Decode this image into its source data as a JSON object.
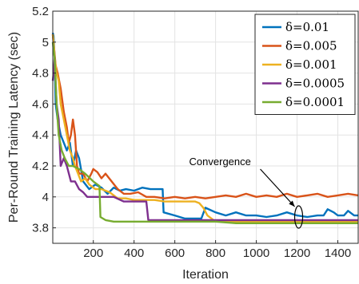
{
  "chart_data": {
    "type": "line",
    "title": "",
    "xlabel": "Iteration",
    "ylabel": "Per-Round Training Latency (sec)",
    "xlim": [
      1,
      1500
    ],
    "ylim": [
      3.7,
      5.2
    ],
    "xticks": [
      200,
      400,
      600,
      800,
      1000,
      1200,
      1400
    ],
    "yticks": [
      3.8,
      4,
      4.2,
      4.4,
      4.6,
      4.8,
      5,
      5.2
    ],
    "xtick_labels": [
      "200",
      "400",
      "600",
      "800",
      "1000",
      "1200",
      "1400"
    ],
    "ytick_labels": [
      "3.8",
      "4",
      "4.2",
      "4.4",
      "4.6",
      "4.8",
      "5",
      "5.2"
    ],
    "grid": true,
    "legend_position": "top-right",
    "series": [
      {
        "name": "δ=0.01",
        "color": "#0072BD",
        "x": [
          1,
          5,
          10,
          15,
          25,
          40,
          55,
          70,
          85,
          100,
          115,
          130,
          150,
          180,
          210,
          240,
          270,
          300,
          330,
          360,
          400,
          440,
          480,
          520,
          540,
          545,
          600,
          650,
          700,
          730,
          750,
          800,
          850,
          900,
          950,
          1000,
          1050,
          1100,
          1150,
          1200,
          1250,
          1300,
          1330,
          1350,
          1380,
          1400,
          1430,
          1450,
          1480,
          1500
        ],
        "y": [
          5.06,
          5.04,
          4.9,
          4.6,
          4.5,
          4.4,
          4.35,
          4.3,
          4.35,
          4.2,
          4.3,
          4.25,
          4.1,
          4.05,
          4.08,
          4.06,
          4.02,
          4.06,
          4.04,
          4.05,
          4.04,
          4.06,
          4.05,
          4.05,
          4.05,
          3.9,
          3.88,
          3.86,
          3.86,
          3.86,
          3.93,
          3.9,
          3.88,
          3.9,
          3.88,
          3.88,
          3.87,
          3.88,
          3.9,
          3.88,
          3.87,
          3.88,
          3.88,
          3.92,
          3.9,
          3.88,
          3.88,
          3.91,
          3.88,
          3.88
        ]
      },
      {
        "name": "δ=0.005",
        "color": "#D95319",
        "x": [
          1,
          8,
          15,
          25,
          40,
          55,
          70,
          80,
          90,
          100,
          110,
          120,
          130,
          150,
          170,
          190,
          200,
          220,
          240,
          260,
          290,
          320,
          350,
          380,
          420,
          460,
          500,
          550,
          600,
          650,
          700,
          750,
          800,
          850,
          900,
          950,
          1000,
          1050,
          1100,
          1150,
          1200,
          1250,
          1300,
          1350,
          1400,
          1450,
          1500
        ],
        "y": [
          5.05,
          4.95,
          4.85,
          4.8,
          4.7,
          4.55,
          4.45,
          4.35,
          4.4,
          4.5,
          4.4,
          4.2,
          4.15,
          4.15,
          4.1,
          4.15,
          4.18,
          4.16,
          4.12,
          4.15,
          4.1,
          4.05,
          4.02,
          4.02,
          4.03,
          4.0,
          4.0,
          3.99,
          4.0,
          3.99,
          4.0,
          3.99,
          4.0,
          4.01,
          4.0,
          4.02,
          4.0,
          4.01,
          4.0,
          4.02,
          4.0,
          4.01,
          4.02,
          4.0,
          4.01,
          4.02,
          4.01
        ]
      },
      {
        "name": "δ=0.001",
        "color": "#EDB120",
        "x": [
          1,
          5,
          10,
          20,
          30,
          40,
          55,
          70,
          85,
          100,
          110,
          125,
          140,
          160,
          180,
          210,
          240,
          280,
          320,
          360,
          400,
          450,
          500,
          550,
          600,
          650,
          700,
          720,
          740,
          760,
          800,
          850,
          900,
          1000,
          1100,
          1200,
          1300,
          1400,
          1500
        ],
        "y": [
          5.05,
          5.0,
          4.9,
          4.8,
          4.75,
          4.6,
          4.5,
          4.4,
          4.3,
          4.25,
          4.2,
          4.15,
          4.1,
          4.12,
          4.08,
          4.05,
          4.05,
          4.03,
          3.99,
          3.99,
          3.98,
          3.98,
          3.98,
          3.97,
          3.97,
          3.97,
          3.97,
          3.96,
          3.93,
          3.88,
          3.84,
          3.84,
          3.84,
          3.84,
          3.84,
          3.84,
          3.84,
          3.84,
          3.84
        ]
      },
      {
        "name": "δ=0.0005",
        "color": "#7E2F8E",
        "x": [
          1,
          5,
          10,
          20,
          30,
          40,
          55,
          70,
          90,
          110,
          130,
          150,
          170,
          200,
          250,
          300,
          350,
          400,
          460,
          470,
          550,
          600,
          700,
          800,
          900,
          1000,
          1100,
          1200,
          1300,
          1400,
          1500
        ],
        "y": [
          4.75,
          4.8,
          4.9,
          4.6,
          4.5,
          4.2,
          4.25,
          4.2,
          4.1,
          4.1,
          4.05,
          4.03,
          4.0,
          4.0,
          4.0,
          4.0,
          3.97,
          3.97,
          3.97,
          3.85,
          3.85,
          3.85,
          3.85,
          3.85,
          3.85,
          3.85,
          3.85,
          3.85,
          3.85,
          3.85,
          3.85
        ]
      },
      {
        "name": "δ=0.0001",
        "color": "#77AC30",
        "x": [
          1,
          5,
          10,
          20,
          30,
          45,
          60,
          80,
          100,
          130,
          160,
          200,
          230,
          235,
          260,
          300,
          400,
          500,
          600,
          700,
          800,
          900,
          1000,
          1100,
          1200,
          1300,
          1400,
          1500
        ],
        "y": [
          5.0,
          4.95,
          4.9,
          4.6,
          4.4,
          4.3,
          4.25,
          4.2,
          4.2,
          4.18,
          4.15,
          4.1,
          4.07,
          3.87,
          3.85,
          3.84,
          3.84,
          3.84,
          3.84,
          3.84,
          3.84,
          3.83,
          3.83,
          3.83,
          3.83,
          3.83,
          3.83,
          3.83
        ]
      }
    ],
    "annotations": [
      {
        "text": "Convergence",
        "x": 1200,
        "y": 3.87
      }
    ]
  }
}
